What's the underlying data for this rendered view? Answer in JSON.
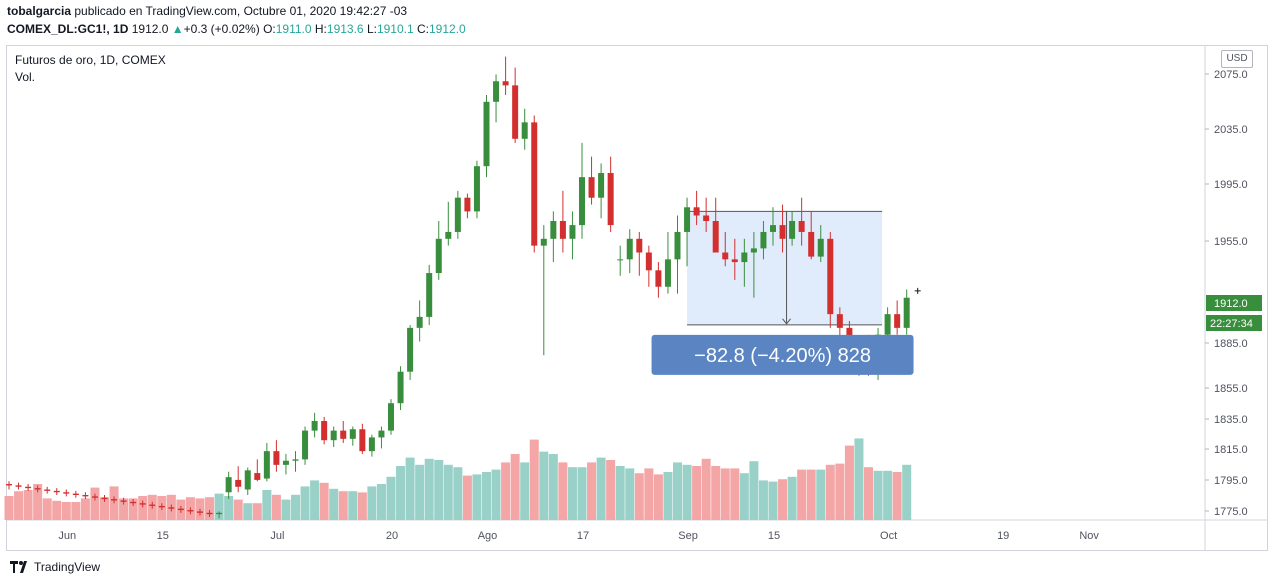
{
  "header": {
    "author": "tobalgarcia",
    "published_text": "publicado en TradingView.com, Octubre 01, 2020 19:42:27 -03",
    "symbol": "COMEX_DL:GC1!,",
    "interval": "1D",
    "last": "1912.0",
    "change_arrow": "▲",
    "change": "+0.3 (+0.02%)",
    "o_label": "O:",
    "o_value": "1911.0",
    "h_label": "H:",
    "h_value": "1913.6",
    "l_label": "L:",
    "l_value": "1910.1",
    "c_label": "C:",
    "c_value": "1912.0"
  },
  "legend": {
    "title": "Futuros de oro, 1D, COMEX",
    "volume": "Vol."
  },
  "currency": "USD",
  "footer": {
    "brand": "TradingView"
  },
  "colors": {
    "up": "#388e3c",
    "down": "#d32f2f",
    "vol_up": "#99d1c8",
    "vol_down": "#f4a6a6",
    "measure_fill": "#d6e6fb",
    "measure_label": "#5b85c2",
    "price_tag": "#388e3c"
  },
  "chart_data": {
    "type": "candlestick",
    "y_axis_ticks": [
      2075.0,
      2035.0,
      1995.0,
      1955.0,
      1885.0,
      1855.0,
      1835.0,
      1815.0,
      1795.0,
      1775.0
    ],
    "x_axis_labels": [
      {
        "label": "Jun",
        "index": 6
      },
      {
        "label": "15",
        "index": 16
      },
      {
        "label": "Jul",
        "index": 28
      },
      {
        "label": "20",
        "index": 40
      },
      {
        "label": "Ago",
        "index": 50
      },
      {
        "label": "17",
        "index": 60
      },
      {
        "label": "Sep",
        "index": 71
      },
      {
        "label": "15",
        "index": 80
      },
      {
        "label": "Oct",
        "index": 92
      },
      {
        "label": "19",
        "index": 104
      },
      {
        "label": "Nov",
        "index": 113
      }
    ],
    "candles": [
      {
        "o": 1776,
        "h": 1778,
        "l": 1772,
        "c": 1775,
        "v": 0.2
      },
      {
        "o": 1775,
        "h": 1777,
        "l": 1772,
        "c": 1774,
        "v": 0.24
      },
      {
        "o": 1774,
        "h": 1776,
        "l": 1771,
        "c": 1773,
        "v": 0.25
      },
      {
        "o": 1773,
        "h": 1775,
        "l": 1770,
        "c": 1772,
        "v": 0.3
      },
      {
        "o": 1772,
        "h": 1774,
        "l": 1769,
        "c": 1771,
        "v": 0.18
      },
      {
        "o": 1771,
        "h": 1773,
        "l": 1768,
        "c": 1770,
        "v": 0.16
      },
      {
        "o": 1770,
        "h": 1772,
        "l": 1767,
        "c": 1769,
        "v": 0.15
      },
      {
        "o": 1769,
        "h": 1771,
        "l": 1766,
        "c": 1768,
        "v": 0.15
      },
      {
        "o": 1768,
        "h": 1770,
        "l": 1765,
        "c": 1767,
        "v": 0.18
      },
      {
        "o": 1767,
        "h": 1769,
        "l": 1764,
        "c": 1766,
        "v": 0.27
      },
      {
        "o": 1766,
        "h": 1768,
        "l": 1763,
        "c": 1765,
        "v": 0.19
      },
      {
        "o": 1765,
        "h": 1767,
        "l": 1762,
        "c": 1764,
        "v": 0.28
      },
      {
        "o": 1764,
        "h": 1766,
        "l": 1761,
        "c": 1763,
        "v": 0.18
      },
      {
        "o": 1763,
        "h": 1765,
        "l": 1760,
        "c": 1762,
        "v": 0.18
      },
      {
        "o": 1762,
        "h": 1764,
        "l": 1759,
        "c": 1761,
        "v": 0.2
      },
      {
        "o": 1761,
        "h": 1763,
        "l": 1758,
        "c": 1760,
        "v": 0.21
      },
      {
        "o": 1760,
        "h": 1762,
        "l": 1757,
        "c": 1759,
        "v": 0.2
      },
      {
        "o": 1759,
        "h": 1761,
        "l": 1756,
        "c": 1758,
        "v": 0.21
      },
      {
        "o": 1758,
        "h": 1760,
        "l": 1755,
        "c": 1757,
        "v": 0.17
      },
      {
        "o": 1757,
        "h": 1759,
        "l": 1754,
        "c": 1756,
        "v": 0.19
      },
      {
        "o": 1756,
        "h": 1758,
        "l": 1753,
        "c": 1755,
        "v": 0.18
      },
      {
        "o": 1755,
        "h": 1757,
        "l": 1752,
        "c": 1754,
        "v": 0.19
      },
      {
        "o": 1754,
        "h": 1756,
        "l": 1751,
        "c": 1755,
        "v": 0.22
      },
      {
        "o": 1770,
        "h": 1785,
        "l": 1765,
        "c": 1781,
        "v": 0.2
      },
      {
        "o": 1779,
        "h": 1789,
        "l": 1770,
        "c": 1774,
        "v": 0.17
      },
      {
        "o": 1772,
        "h": 1788,
        "l": 1768,
        "c": 1786,
        "v": 0.14
      },
      {
        "o": 1784,
        "h": 1794,
        "l": 1778,
        "c": 1779,
        "v": 0.14
      },
      {
        "o": 1780,
        "h": 1806,
        "l": 1778,
        "c": 1800,
        "v": 0.25
      },
      {
        "o": 1800,
        "h": 1808,
        "l": 1785,
        "c": 1790,
        "v": 0.21
      },
      {
        "o": 1790,
        "h": 1798,
        "l": 1783,
        "c": 1793,
        "v": 0.17
      },
      {
        "o": 1793,
        "h": 1800,
        "l": 1785,
        "c": 1794,
        "v": 0.21
      },
      {
        "o": 1794,
        "h": 1818,
        "l": 1790,
        "c": 1815,
        "v": 0.28
      },
      {
        "o": 1815,
        "h": 1828,
        "l": 1810,
        "c": 1822,
        "v": 0.33
      },
      {
        "o": 1822,
        "h": 1825,
        "l": 1805,
        "c": 1808,
        "v": 0.31
      },
      {
        "o": 1808,
        "h": 1818,
        "l": 1803,
        "c": 1815,
        "v": 0.26
      },
      {
        "o": 1815,
        "h": 1822,
        "l": 1806,
        "c": 1809,
        "v": 0.24
      },
      {
        "o": 1809,
        "h": 1818,
        "l": 1804,
        "c": 1816,
        "v": 0.24
      },
      {
        "o": 1816,
        "h": 1820,
        "l": 1798,
        "c": 1800,
        "v": 0.23
      },
      {
        "o": 1800,
        "h": 1812,
        "l": 1796,
        "c": 1810,
        "v": 0.28
      },
      {
        "o": 1810,
        "h": 1818,
        "l": 1802,
        "c": 1815,
        "v": 0.3
      },
      {
        "o": 1815,
        "h": 1838,
        "l": 1812,
        "c": 1835,
        "v": 0.36
      },
      {
        "o": 1835,
        "h": 1862,
        "l": 1830,
        "c": 1858,
        "v": 0.45
      },
      {
        "o": 1858,
        "h": 1892,
        "l": 1852,
        "c": 1890,
        "v": 0.52
      },
      {
        "o": 1890,
        "h": 1910,
        "l": 1880,
        "c": 1898,
        "v": 0.46
      },
      {
        "o": 1898,
        "h": 1936,
        "l": 1892,
        "c": 1930,
        "v": 0.51
      },
      {
        "o": 1930,
        "h": 1968,
        "l": 1925,
        "c": 1955,
        "v": 0.5
      },
      {
        "o": 1955,
        "h": 1982,
        "l": 1950,
        "c": 1960,
        "v": 0.46
      },
      {
        "o": 1960,
        "h": 1990,
        "l": 1955,
        "c": 1985,
        "v": 0.44
      },
      {
        "o": 1985,
        "h": 1988,
        "l": 1970,
        "c": 1975,
        "v": 0.37
      },
      {
        "o": 1975,
        "h": 2012,
        "l": 1970,
        "c": 2008,
        "v": 0.38
      },
      {
        "o": 2008,
        "h": 2060,
        "l": 2000,
        "c": 2055,
        "v": 0.4
      },
      {
        "o": 2055,
        "h": 2075,
        "l": 2040,
        "c": 2070,
        "v": 0.42
      },
      {
        "o": 2070,
        "h": 2088,
        "l": 2060,
        "c": 2067,
        "v": 0.48
      },
      {
        "o": 2067,
        "h": 2080,
        "l": 2025,
        "c": 2028,
        "v": 0.55
      },
      {
        "o": 2028,
        "h": 2050,
        "l": 2020,
        "c": 2040,
        "v": 0.48
      },
      {
        "o": 2040,
        "h": 2045,
        "l": 1945,
        "c": 1950,
        "v": 0.67
      },
      {
        "o": 1950,
        "h": 1965,
        "l": 1870,
        "c": 1955,
        "v": 0.57
      },
      {
        "o": 1955,
        "h": 1975,
        "l": 1938,
        "c": 1968,
        "v": 0.55
      },
      {
        "o": 1968,
        "h": 1990,
        "l": 1945,
        "c": 1955,
        "v": 0.48
      },
      {
        "o": 1955,
        "h": 1975,
        "l": 1940,
        "c": 1965,
        "v": 0.44
      },
      {
        "o": 1965,
        "h": 2025,
        "l": 1955,
        "c": 2000,
        "v": 0.44
      },
      {
        "o": 2000,
        "h": 2015,
        "l": 1980,
        "c": 1985,
        "v": 0.48
      },
      {
        "o": 1985,
        "h": 2010,
        "l": 1970,
        "c": 2003,
        "v": 0.52
      },
      {
        "o": 2003,
        "h": 2015,
        "l": 1960,
        "c": 1965,
        "v": 0.5
      },
      {
        "o": 1940,
        "h": 1950,
        "l": 1928,
        "c": 1940,
        "v": 0.45
      },
      {
        "o": 1940,
        "h": 1962,
        "l": 1930,
        "c": 1955,
        "v": 0.43
      },
      {
        "o": 1955,
        "h": 1960,
        "l": 1928,
        "c": 1945,
        "v": 0.39
      },
      {
        "o": 1945,
        "h": 1950,
        "l": 1920,
        "c": 1932,
        "v": 0.43
      },
      {
        "o": 1932,
        "h": 1938,
        "l": 1912,
        "c": 1920,
        "v": 0.38
      },
      {
        "o": 1920,
        "h": 1960,
        "l": 1915,
        "c": 1940,
        "v": 0.4
      },
      {
        "o": 1940,
        "h": 1972,
        "l": 1915,
        "c": 1960,
        "v": 0.48
      },
      {
        "o": 1960,
        "h": 1985,
        "l": 1935,
        "c": 1978,
        "v": 0.46
      },
      {
        "o": 1978,
        "h": 1990,
        "l": 1965,
        "c": 1972,
        "v": 0.45
      },
      {
        "o": 1972,
        "h": 1985,
        "l": 1960,
        "c": 1968,
        "v": 0.51
      },
      {
        "o": 1968,
        "h": 1985,
        "l": 1948,
        "c": 1945,
        "v": 0.45
      },
      {
        "o": 1945,
        "h": 1960,
        "l": 1935,
        "c": 1940,
        "v": 0.43
      },
      {
        "o": 1940,
        "h": 1955,
        "l": 1925,
        "c": 1938,
        "v": 0.43
      },
      {
        "o": 1938,
        "h": 1955,
        "l": 1920,
        "c": 1945,
        "v": 0.39
      },
      {
        "o": 1945,
        "h": 1960,
        "l": 1912,
        "c": 1948,
        "v": 0.49
      },
      {
        "o": 1948,
        "h": 1968,
        "l": 1940,
        "c": 1960,
        "v": 0.33
      },
      {
        "o": 1960,
        "h": 1978,
        "l": 1950,
        "c": 1965,
        "v": 0.32
      },
      {
        "o": 1965,
        "h": 1980,
        "l": 1945,
        "c": 1955,
        "v": 0.34
      },
      {
        "o": 1955,
        "h": 1975,
        "l": 1950,
        "c": 1968,
        "v": 0.36
      },
      {
        "o": 1968,
        "h": 1985,
        "l": 1950,
        "c": 1960,
        "v": 0.42
      },
      {
        "o": 1960,
        "h": 1975,
        "l": 1940,
        "c": 1942,
        "v": 0.42
      },
      {
        "o": 1942,
        "h": 1965,
        "l": 1938,
        "c": 1955,
        "v": 0.42
      },
      {
        "o": 1955,
        "h": 1960,
        "l": 1890,
        "c": 1900,
        "v": 0.46
      },
      {
        "o": 1900,
        "h": 1905,
        "l": 1880,
        "c": 1890,
        "v": 0.47
      },
      {
        "o": 1890,
        "h": 1895,
        "l": 1860,
        "c": 1862,
        "v": 0.62
      },
      {
        "o": 1862,
        "h": 1880,
        "l": 1855,
        "c": 1875,
        "v": 0.68
      },
      {
        "o": 1875,
        "h": 1885,
        "l": 1855,
        "c": 1868,
        "v": 0.44
      },
      {
        "o": 1868,
        "h": 1890,
        "l": 1852,
        "c": 1885,
        "v": 0.41
      },
      {
        "o": 1885,
        "h": 1905,
        "l": 1878,
        "c": 1900,
        "v": 0.41
      },
      {
        "o": 1900,
        "h": 1910,
        "l": 1885,
        "c": 1890,
        "v": 0.4
      },
      {
        "o": 1890,
        "h": 1918,
        "l": 1885,
        "c": 1912,
        "v": 0.46
      }
    ],
    "measure": {
      "from_index": 71,
      "to_index": 91,
      "top_price": 1975.0,
      "bottom_price": 1892.2,
      "label": "−82.8 (−4.20%) 828"
    },
    "last_price_label": "1912.0",
    "countdown_label": "22:27:34"
  }
}
